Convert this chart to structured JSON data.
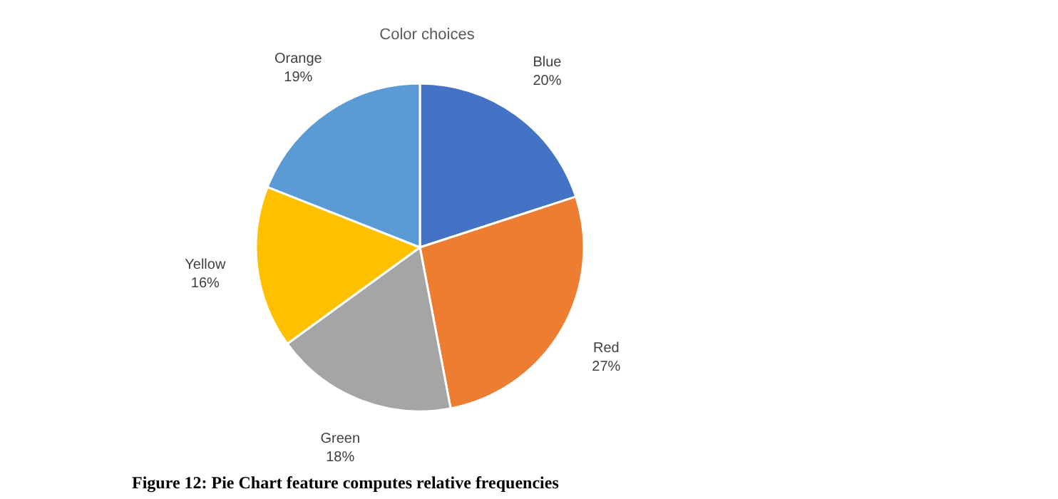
{
  "chart_data": {
    "type": "pie",
    "title": "Color choices",
    "categories": [
      "Blue",
      "Red",
      "Green",
      "Yellow",
      "Orange"
    ],
    "values": [
      20,
      27,
      18,
      16,
      19
    ],
    "colors": [
      "#4472c4",
      "#ed7d31",
      "#a5a5a5",
      "#ffc000",
      "#5b9bd5"
    ],
    "value_labels": [
      "20%",
      "27%",
      "18%",
      "16%",
      "19%"
    ],
    "annotations": [
      "Figure 12: Pie Chart feature computes relative frequencies"
    ]
  }
}
